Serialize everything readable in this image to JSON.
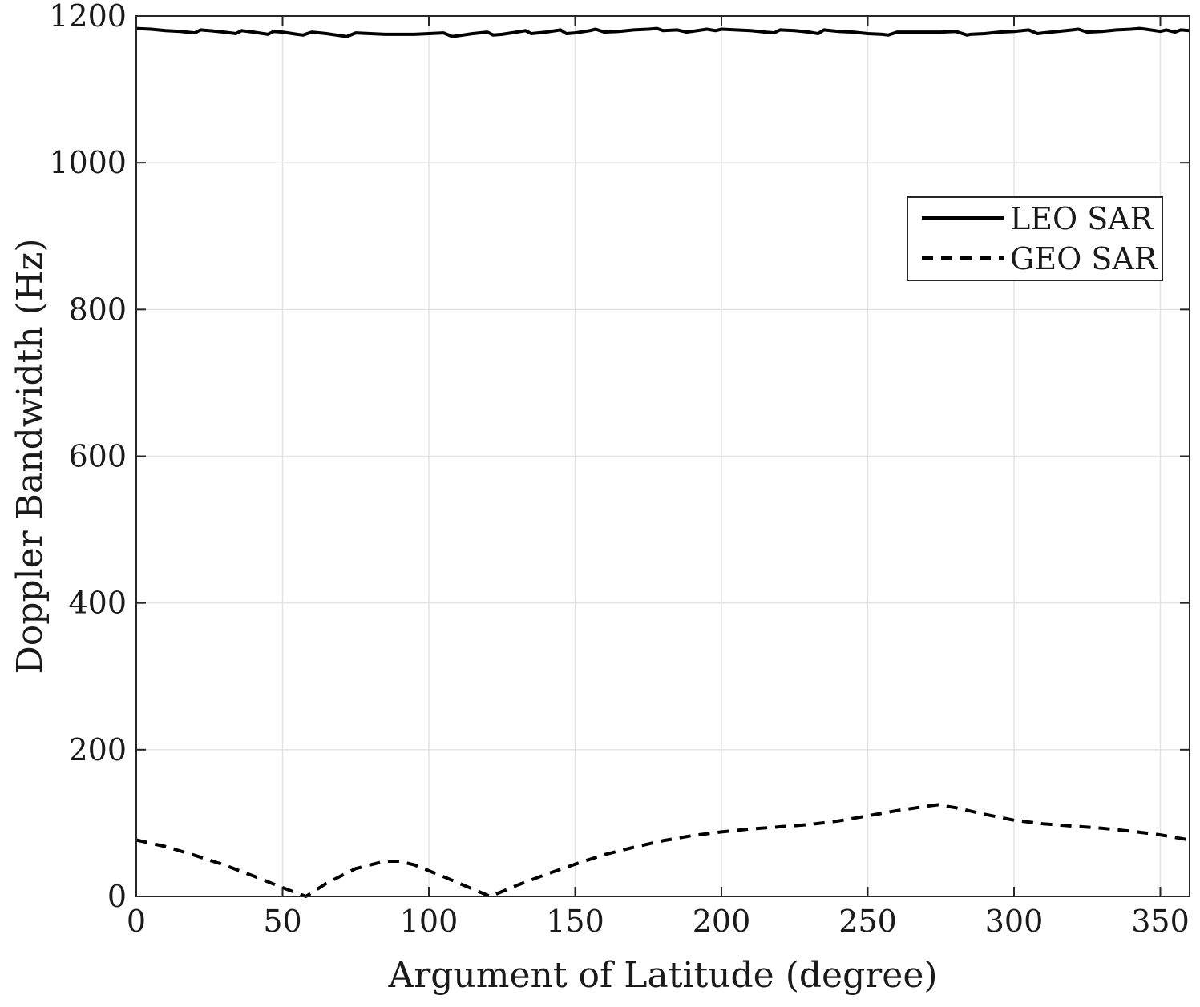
{
  "chart_data": {
    "type": "line",
    "title": "",
    "xlabel": "Argument of Latitude (degree)",
    "ylabel": "Doppler Bandwidth (Hz)",
    "xlim": [
      0,
      360
    ],
    "ylim": [
      0,
      1200
    ],
    "xticks": [
      0,
      50,
      100,
      150,
      200,
      250,
      300,
      350
    ],
    "yticks": [
      0,
      200,
      400,
      600,
      800,
      1000,
      1200
    ],
    "grid": true,
    "legend_position": "top-right",
    "series": [
      {
        "name": "LEO SAR",
        "style": "solid",
        "color": "#000000",
        "x": [
          0,
          5,
          10,
          15,
          20,
          22,
          25,
          30,
          34,
          36,
          40,
          45,
          47,
          50,
          55,
          57,
          60,
          65,
          70,
          72,
          75,
          80,
          85,
          90,
          95,
          100,
          105,
          108,
          110,
          115,
          120,
          122,
          125,
          130,
          133,
          135,
          140,
          145,
          147,
          150,
          155,
          157,
          160,
          165,
          170,
          175,
          178,
          180,
          185,
          188,
          190,
          195,
          198,
          200,
          205,
          210,
          215,
          218,
          220,
          225,
          230,
          233,
          235,
          240,
          245,
          250,
          255,
          257,
          260,
          265,
          270,
          275,
          280,
          284,
          285,
          290,
          295,
          300,
          305,
          308,
          310,
          315,
          320,
          322,
          325,
          330,
          335,
          340,
          343,
          345,
          350,
          352,
          355,
          357,
          360
        ],
        "values": [
          1183,
          1182,
          1180,
          1179,
          1177,
          1181,
          1180,
          1178,
          1176,
          1180,
          1178,
          1175,
          1179,
          1178,
          1175,
          1174,
          1178,
          1176,
          1173,
          1172,
          1177,
          1176,
          1175,
          1175,
          1175,
          1176,
          1177,
          1172,
          1173,
          1176,
          1178,
          1174,
          1175,
          1178,
          1180,
          1176,
          1178,
          1181,
          1176,
          1177,
          1180,
          1182,
          1178,
          1179,
          1181,
          1182,
          1183,
          1180,
          1181,
          1178,
          1179,
          1182,
          1180,
          1182,
          1181,
          1180,
          1178,
          1177,
          1181,
          1180,
          1178,
          1176,
          1181,
          1179,
          1178,
          1176,
          1175,
          1174,
          1178,
          1178,
          1178,
          1178,
          1179,
          1174,
          1175,
          1176,
          1178,
          1179,
          1181,
          1176,
          1177,
          1179,
          1181,
          1182,
          1178,
          1179,
          1181,
          1182,
          1183,
          1182,
          1179,
          1181,
          1178,
          1181,
          1180
        ]
      },
      {
        "name": "GEO SAR",
        "style": "dashed",
        "color": "#000000",
        "x": [
          0,
          10,
          20,
          30,
          40,
          50,
          58,
          65,
          75,
          85,
          90,
          95,
          105,
          115,
          121,
          130,
          140,
          150,
          160,
          170,
          180,
          190,
          200,
          210,
          220,
          230,
          240,
          250,
          260,
          270,
          274,
          280,
          290,
          300,
          310,
          320,
          330,
          340,
          350,
          360
        ],
        "values": [
          77,
          68,
          56,
          43,
          28,
          12,
          0,
          18,
          38,
          48,
          48,
          43,
          27,
          10,
          0,
          15,
          30,
          44,
          57,
          67,
          76,
          83,
          88,
          92,
          95,
          98,
          103,
          110,
          117,
          123,
          125,
          121,
          112,
          104,
          99,
          96,
          93,
          89,
          84,
          77
        ]
      }
    ]
  }
}
